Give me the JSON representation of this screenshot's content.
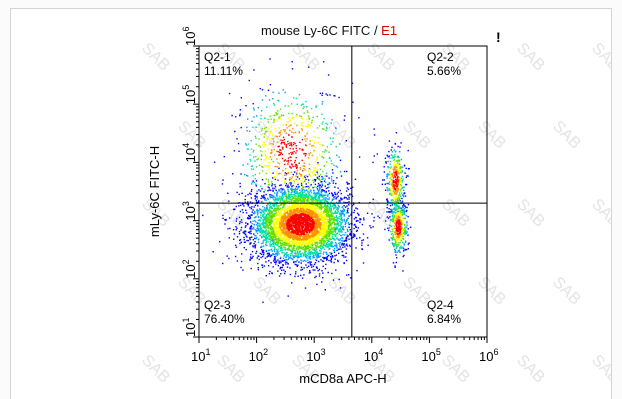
{
  "header": {
    "title_main": "mouse Ly-6C FITC",
    "title_sep": " / ",
    "title_sample": "E1",
    "alert_mark": "!"
  },
  "watermark": "SAB",
  "chart_data": {
    "type": "scatter",
    "title": "mouse Ly-6C FITC / E1",
    "xlabel": "mCD8a APC-H",
    "ylabel": "mLy-6C FITC-H",
    "xscale": "log",
    "yscale": "log",
    "xlim": [
      10,
      1000000
    ],
    "ylim": [
      10,
      1000000
    ],
    "x_ticks": [
      {
        "base": "10",
        "exp": "1"
      },
      {
        "base": "10",
        "exp": "2"
      },
      {
        "base": "10",
        "exp": "3"
      },
      {
        "base": "10",
        "exp": "4"
      },
      {
        "base": "10",
        "exp": "5"
      },
      {
        "base": "10",
        "exp": "6"
      }
    ],
    "y_ticks": [
      {
        "base": "10",
        "exp": "1"
      },
      {
        "base": "10",
        "exp": "2"
      },
      {
        "base": "10",
        "exp": "3"
      },
      {
        "base": "10",
        "exp": "4"
      },
      {
        "base": "10",
        "exp": "5"
      },
      {
        "base": "10",
        "exp": "6"
      }
    ],
    "quadrant_gate": {
      "x": 4500,
      "y": 2000
    },
    "quadrants": [
      {
        "name": "Q2-1",
        "percent": "11.11%",
        "corner": "top-left"
      },
      {
        "name": "Q2-2",
        "percent": "5.66%",
        "corner": "top-right"
      },
      {
        "name": "Q2-3",
        "percent": "76.40%",
        "corner": "bottom-left"
      },
      {
        "name": "Q2-4",
        "percent": "6.84%",
        "corner": "bottom-right"
      }
    ],
    "populations": [
      {
        "log_x_center": 2.75,
        "log_y_center": 2.95,
        "log_x_sd": 0.42,
        "log_y_sd": 0.32,
        "weight": 0.76
      },
      {
        "log_x_center": 4.4,
        "log_y_center": 3.7,
        "log_x_sd": 0.08,
        "log_y_sd": 0.28,
        "weight": 0.06
      },
      {
        "log_x_center": 4.45,
        "log_y_center": 2.9,
        "log_x_sd": 0.08,
        "log_y_sd": 0.22,
        "weight": 0.07
      },
      {
        "log_x_center": 2.6,
        "log_y_center": 4.2,
        "log_x_sd": 0.45,
        "log_y_sd": 0.55,
        "weight": 0.11
      }
    ],
    "density_colors": [
      "#0000ff",
      "#00a0ff",
      "#00e0a0",
      "#60e000",
      "#ffff00",
      "#ff9000",
      "#ff0000"
    ],
    "grid": false,
    "legend": "none"
  }
}
